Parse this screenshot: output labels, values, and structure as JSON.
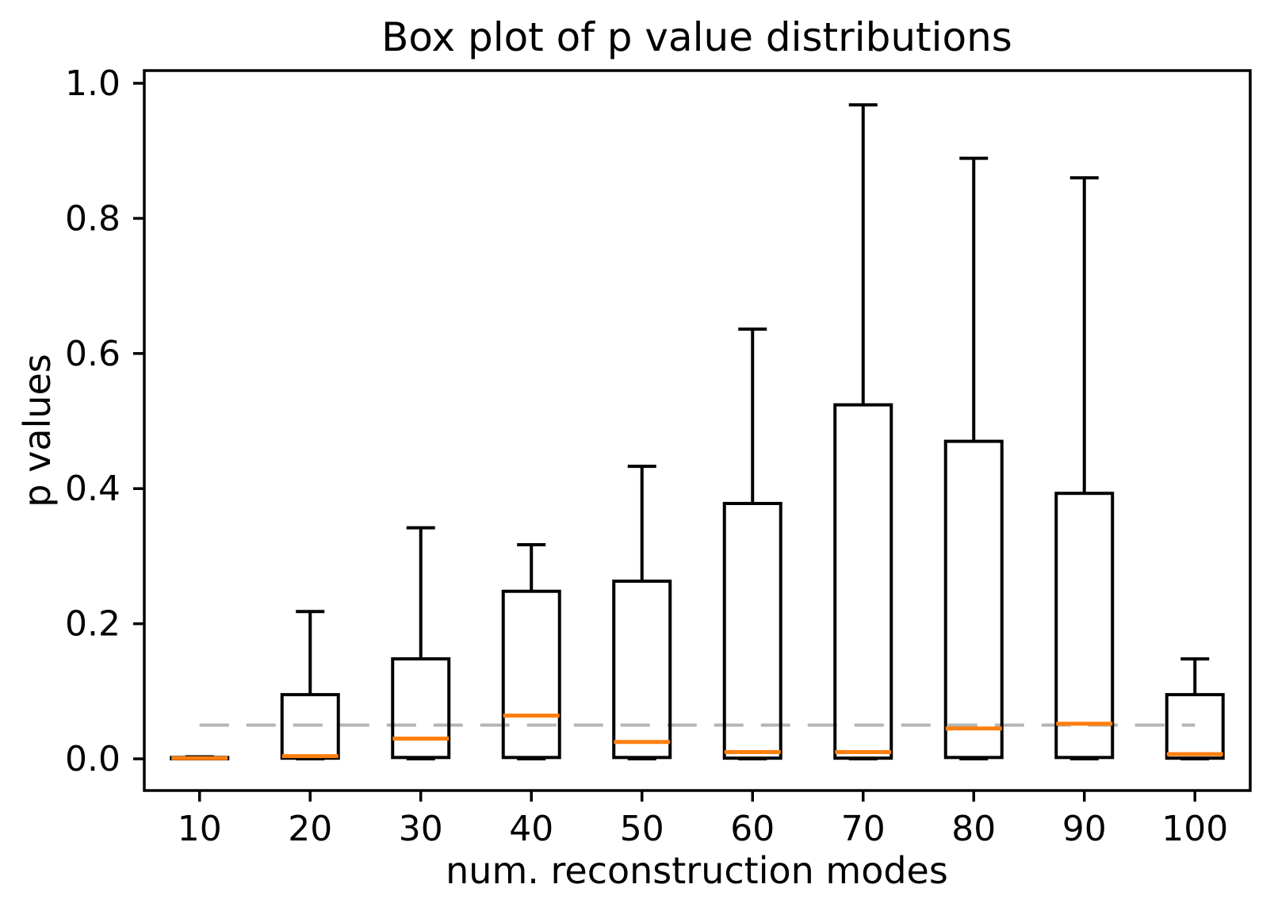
{
  "figure": {
    "background": "#ffffff"
  },
  "chart_data": {
    "type": "boxplot",
    "title": "Box plot of p value distributions",
    "xlabel": "num. reconstruction modes",
    "ylabel": "p values",
    "categories": [
      10,
      20,
      30,
      40,
      50,
      60,
      70,
      80,
      90,
      100
    ],
    "x_tick_labels": [
      "10",
      "20",
      "30",
      "40",
      "50",
      "60",
      "70",
      "80",
      "90",
      "100"
    ],
    "y_ticks": [
      0.0,
      0.2,
      0.4,
      0.6,
      0.8,
      1.0
    ],
    "y_tick_labels": [
      "0.0",
      "0.2",
      "0.4",
      "0.6",
      "0.8",
      "1.0"
    ],
    "ylim": [
      -0.0469,
      1.0188
    ],
    "grid": false,
    "legend": null,
    "boxes": [
      {
        "pos": 10,
        "whislo": 0.0,
        "q1": 0.0,
        "med": 0.001,
        "q3": 0.002,
        "whishi": 0.003
      },
      {
        "pos": 20,
        "whislo": 0.0,
        "q1": 0.001,
        "med": 0.004,
        "q3": 0.095,
        "whishi": 0.218
      },
      {
        "pos": 30,
        "whislo": 0.0,
        "q1": 0.002,
        "med": 0.03,
        "q3": 0.148,
        "whishi": 0.342
      },
      {
        "pos": 40,
        "whislo": 0.0,
        "q1": 0.002,
        "med": 0.064,
        "q3": 0.248,
        "whishi": 0.317
      },
      {
        "pos": 50,
        "whislo": 0.0,
        "q1": 0.002,
        "med": 0.025,
        "q3": 0.263,
        "whishi": 0.433
      },
      {
        "pos": 60,
        "whislo": 0.0,
        "q1": 0.001,
        "med": 0.01,
        "q3": 0.378,
        "whishi": 0.636
      },
      {
        "pos": 70,
        "whislo": 0.0,
        "q1": 0.001,
        "med": 0.01,
        "q3": 0.524,
        "whishi": 0.968
      },
      {
        "pos": 80,
        "whislo": 0.0,
        "q1": 0.002,
        "med": 0.045,
        "q3": 0.47,
        "whishi": 0.889
      },
      {
        "pos": 90,
        "whislo": 0.0,
        "q1": 0.002,
        "med": 0.052,
        "q3": 0.393,
        "whishi": 0.86
      },
      {
        "pos": 100,
        "whislo": 0.0,
        "q1": 0.001,
        "med": 0.007,
        "q3": 0.095,
        "whishi": 0.148
      }
    ],
    "reference_line": {
      "y": 0.05,
      "x_start_pos": 10,
      "x_end_pos": 100,
      "style": "dashed",
      "color": "#b4b4b4"
    },
    "colors": {
      "box_line": "#000000",
      "whisker_line": "#000000",
      "median_line": "#ff7f0e",
      "spine": "#000000",
      "tick": "#000000",
      "text": "#000000",
      "background": "#ffffff"
    }
  }
}
